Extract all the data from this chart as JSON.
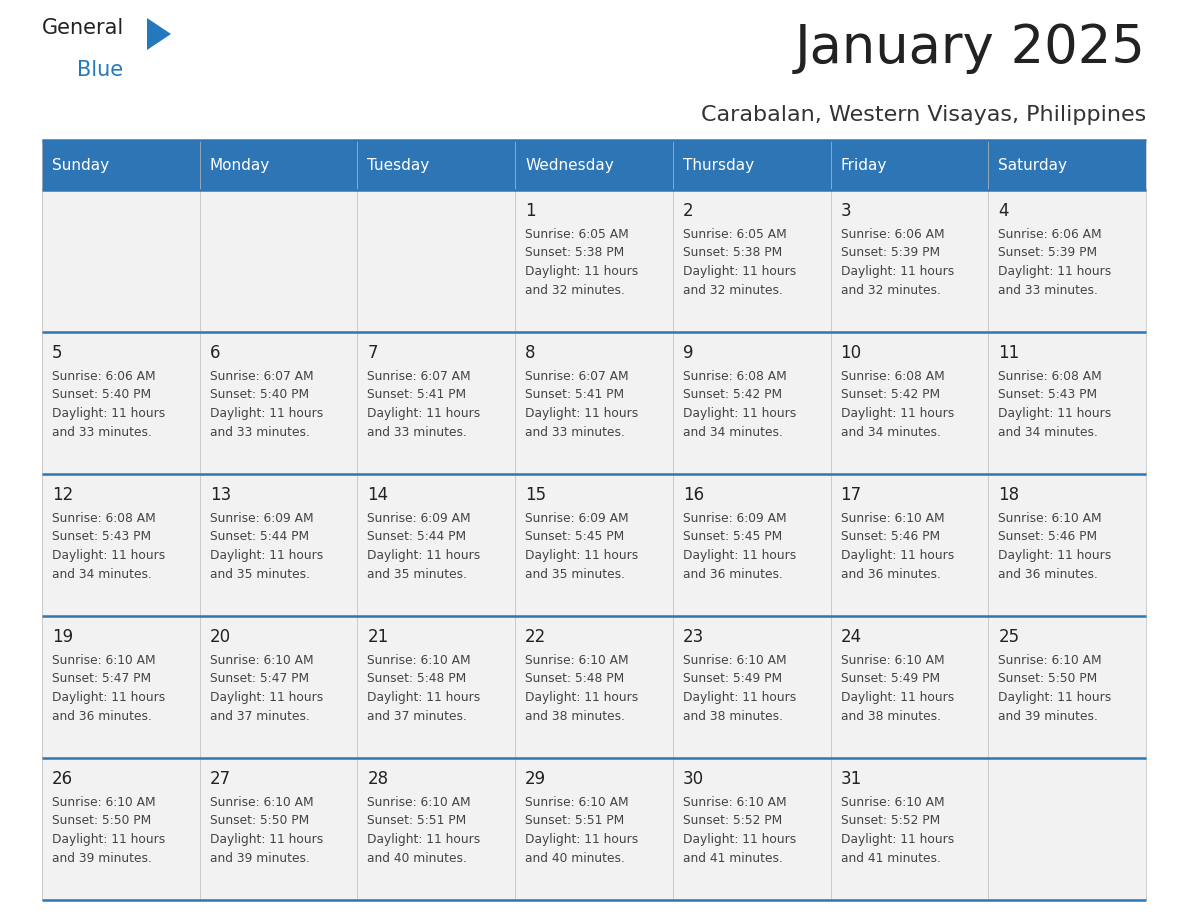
{
  "title": "January 2025",
  "subtitle": "Carabalan, Western Visayas, Philippines",
  "header_bg": "#2E75B6",
  "header_text_color": "#FFFFFF",
  "cell_bg": "#F2F2F2",
  "title_color": "#222222",
  "subtitle_color": "#333333",
  "border_color": "#2E75B6",
  "day_num_color": "#222222",
  "cell_text_color": "#444444",
  "logo_general_color": "#222222",
  "logo_blue_color": "#2479BE",
  "day_names": [
    "Sunday",
    "Monday",
    "Tuesday",
    "Wednesday",
    "Thursday",
    "Friday",
    "Saturday"
  ],
  "calendar": [
    [
      {
        "day": 0,
        "info": ""
      },
      {
        "day": 0,
        "info": ""
      },
      {
        "day": 0,
        "info": ""
      },
      {
        "day": 1,
        "info": "Sunrise: 6:05 AM\nSunset: 5:38 PM\nDaylight: 11 hours\nand 32 minutes."
      },
      {
        "day": 2,
        "info": "Sunrise: 6:05 AM\nSunset: 5:38 PM\nDaylight: 11 hours\nand 32 minutes."
      },
      {
        "day": 3,
        "info": "Sunrise: 6:06 AM\nSunset: 5:39 PM\nDaylight: 11 hours\nand 32 minutes."
      },
      {
        "day": 4,
        "info": "Sunrise: 6:06 AM\nSunset: 5:39 PM\nDaylight: 11 hours\nand 33 minutes."
      }
    ],
    [
      {
        "day": 5,
        "info": "Sunrise: 6:06 AM\nSunset: 5:40 PM\nDaylight: 11 hours\nand 33 minutes."
      },
      {
        "day": 6,
        "info": "Sunrise: 6:07 AM\nSunset: 5:40 PM\nDaylight: 11 hours\nand 33 minutes."
      },
      {
        "day": 7,
        "info": "Sunrise: 6:07 AM\nSunset: 5:41 PM\nDaylight: 11 hours\nand 33 minutes."
      },
      {
        "day": 8,
        "info": "Sunrise: 6:07 AM\nSunset: 5:41 PM\nDaylight: 11 hours\nand 33 minutes."
      },
      {
        "day": 9,
        "info": "Sunrise: 6:08 AM\nSunset: 5:42 PM\nDaylight: 11 hours\nand 34 minutes."
      },
      {
        "day": 10,
        "info": "Sunrise: 6:08 AM\nSunset: 5:42 PM\nDaylight: 11 hours\nand 34 minutes."
      },
      {
        "day": 11,
        "info": "Sunrise: 6:08 AM\nSunset: 5:43 PM\nDaylight: 11 hours\nand 34 minutes."
      }
    ],
    [
      {
        "day": 12,
        "info": "Sunrise: 6:08 AM\nSunset: 5:43 PM\nDaylight: 11 hours\nand 34 minutes."
      },
      {
        "day": 13,
        "info": "Sunrise: 6:09 AM\nSunset: 5:44 PM\nDaylight: 11 hours\nand 35 minutes."
      },
      {
        "day": 14,
        "info": "Sunrise: 6:09 AM\nSunset: 5:44 PM\nDaylight: 11 hours\nand 35 minutes."
      },
      {
        "day": 15,
        "info": "Sunrise: 6:09 AM\nSunset: 5:45 PM\nDaylight: 11 hours\nand 35 minutes."
      },
      {
        "day": 16,
        "info": "Sunrise: 6:09 AM\nSunset: 5:45 PM\nDaylight: 11 hours\nand 36 minutes."
      },
      {
        "day": 17,
        "info": "Sunrise: 6:10 AM\nSunset: 5:46 PM\nDaylight: 11 hours\nand 36 minutes."
      },
      {
        "day": 18,
        "info": "Sunrise: 6:10 AM\nSunset: 5:46 PM\nDaylight: 11 hours\nand 36 minutes."
      }
    ],
    [
      {
        "day": 19,
        "info": "Sunrise: 6:10 AM\nSunset: 5:47 PM\nDaylight: 11 hours\nand 36 minutes."
      },
      {
        "day": 20,
        "info": "Sunrise: 6:10 AM\nSunset: 5:47 PM\nDaylight: 11 hours\nand 37 minutes."
      },
      {
        "day": 21,
        "info": "Sunrise: 6:10 AM\nSunset: 5:48 PM\nDaylight: 11 hours\nand 37 minutes."
      },
      {
        "day": 22,
        "info": "Sunrise: 6:10 AM\nSunset: 5:48 PM\nDaylight: 11 hours\nand 38 minutes."
      },
      {
        "day": 23,
        "info": "Sunrise: 6:10 AM\nSunset: 5:49 PM\nDaylight: 11 hours\nand 38 minutes."
      },
      {
        "day": 24,
        "info": "Sunrise: 6:10 AM\nSunset: 5:49 PM\nDaylight: 11 hours\nand 38 minutes."
      },
      {
        "day": 25,
        "info": "Sunrise: 6:10 AM\nSunset: 5:50 PM\nDaylight: 11 hours\nand 39 minutes."
      }
    ],
    [
      {
        "day": 26,
        "info": "Sunrise: 6:10 AM\nSunset: 5:50 PM\nDaylight: 11 hours\nand 39 minutes."
      },
      {
        "day": 27,
        "info": "Sunrise: 6:10 AM\nSunset: 5:50 PM\nDaylight: 11 hours\nand 39 minutes."
      },
      {
        "day": 28,
        "info": "Sunrise: 6:10 AM\nSunset: 5:51 PM\nDaylight: 11 hours\nand 40 minutes."
      },
      {
        "day": 29,
        "info": "Sunrise: 6:10 AM\nSunset: 5:51 PM\nDaylight: 11 hours\nand 40 minutes."
      },
      {
        "day": 30,
        "info": "Sunrise: 6:10 AM\nSunset: 5:52 PM\nDaylight: 11 hours\nand 41 minutes."
      },
      {
        "day": 31,
        "info": "Sunrise: 6:10 AM\nSunset: 5:52 PM\nDaylight: 11 hours\nand 41 minutes."
      },
      {
        "day": 0,
        "info": ""
      }
    ]
  ]
}
